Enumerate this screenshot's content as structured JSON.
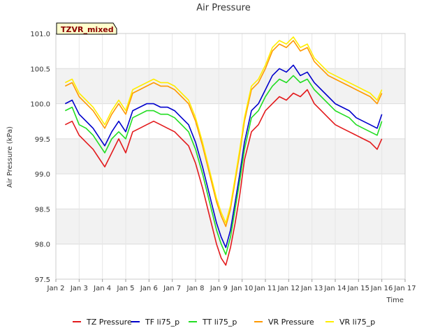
{
  "chart_data": {
    "type": "line",
    "title": "Air Pressure",
    "xlabel": "Time",
    "ylabel": "Air Pressure (kPa)",
    "badge": "TZVR_mixed",
    "ylim": [
      97.5,
      101.0
    ],
    "yticks": [
      "97.5",
      "98.0",
      "98.5",
      "99.0",
      "99.5",
      "100.0",
      "100.5",
      "101.0"
    ],
    "xlim": [
      2,
      17
    ],
    "xticks": [
      "Jan 2",
      "Jan 3",
      "Jan 4",
      "Jan 5",
      "Jan 6",
      "Jan 7",
      "Jan 8",
      "Jan 9",
      "Jan 10",
      "Jan 11",
      "Jan 12",
      "Jan 13",
      "Jan 14",
      "Jan 15",
      "Jan 16",
      "Jan 17"
    ],
    "grid": true,
    "legend_position": "bottom",
    "x": [
      2.4,
      2.7,
      3.0,
      3.3,
      3.6,
      3.9,
      4.1,
      4.4,
      4.7,
      5.0,
      5.3,
      5.6,
      5.9,
      6.2,
      6.5,
      6.8,
      7.1,
      7.4,
      7.7,
      8.0,
      8.3,
      8.6,
      8.9,
      9.1,
      9.3,
      9.5,
      9.7,
      9.9,
      10.1,
      10.4,
      10.7,
      11.0,
      11.3,
      11.6,
      11.9,
      12.2,
      12.5,
      12.8,
      13.1,
      13.4,
      13.7,
      14.0,
      14.3,
      14.6,
      14.9,
      15.2,
      15.5,
      15.8,
      16.0
    ],
    "series": [
      {
        "name": "TZ Pressure",
        "color": "#e31a1c",
        "values": [
          99.7,
          99.75,
          99.55,
          99.45,
          99.35,
          99.2,
          99.1,
          99.3,
          99.5,
          99.3,
          99.6,
          99.65,
          99.7,
          99.75,
          99.7,
          99.65,
          99.6,
          99.5,
          99.4,
          99.15,
          98.8,
          98.4,
          98.0,
          97.8,
          97.7,
          97.95,
          98.3,
          98.7,
          99.2,
          99.6,
          99.7,
          99.9,
          100.0,
          100.1,
          100.05,
          100.15,
          100.1,
          100.2,
          100.0,
          99.9,
          99.8,
          99.7,
          99.65,
          99.6,
          99.55,
          99.5,
          99.45,
          99.35,
          99.5
        ]
      },
      {
        "name": "TF li75_p",
        "color": "#0000cc",
        "values": [
          100.0,
          100.05,
          99.85,
          99.75,
          99.65,
          99.5,
          99.4,
          99.6,
          99.75,
          99.6,
          99.9,
          99.95,
          100.0,
          100.0,
          99.95,
          99.95,
          99.9,
          99.8,
          99.7,
          99.45,
          99.1,
          98.7,
          98.3,
          98.1,
          97.95,
          98.2,
          98.6,
          99.0,
          99.45,
          99.9,
          100.0,
          100.2,
          100.4,
          100.5,
          100.45,
          100.55,
          100.4,
          100.45,
          100.3,
          100.2,
          100.1,
          100.0,
          99.95,
          99.9,
          99.8,
          99.75,
          99.7,
          99.65,
          99.85
        ]
      },
      {
        "name": "TT li75_p",
        "color": "#22dd22",
        "values": [
          99.9,
          99.95,
          99.7,
          99.65,
          99.55,
          99.4,
          99.3,
          99.5,
          99.6,
          99.5,
          99.8,
          99.85,
          99.9,
          99.9,
          99.85,
          99.85,
          99.8,
          99.7,
          99.6,
          99.35,
          99.0,
          98.6,
          98.2,
          98.0,
          97.85,
          98.1,
          98.5,
          98.9,
          99.35,
          99.8,
          99.9,
          100.1,
          100.25,
          100.35,
          100.3,
          100.4,
          100.3,
          100.35,
          100.2,
          100.1,
          100.0,
          99.9,
          99.85,
          99.8,
          99.7,
          99.65,
          99.6,
          99.55,
          99.75
        ]
      },
      {
        "name": "VR Pressure",
        "color": "#ff9900",
        "values": [
          100.25,
          100.3,
          100.1,
          100.0,
          99.9,
          99.75,
          99.65,
          99.85,
          100.0,
          99.85,
          100.15,
          100.2,
          100.25,
          100.3,
          100.25,
          100.25,
          100.2,
          100.1,
          100.0,
          99.75,
          99.4,
          99.0,
          98.6,
          98.4,
          98.25,
          98.5,
          98.9,
          99.3,
          99.75,
          100.2,
          100.3,
          100.5,
          100.75,
          100.85,
          100.8,
          100.9,
          100.75,
          100.8,
          100.6,
          100.5,
          100.4,
          100.35,
          100.3,
          100.25,
          100.2,
          100.15,
          100.1,
          100.0,
          100.15
        ]
      },
      {
        "name": "VR li75_p",
        "color": "#ffee00",
        "values": [
          100.3,
          100.35,
          100.15,
          100.05,
          99.95,
          99.8,
          99.7,
          99.9,
          100.05,
          99.9,
          100.2,
          100.25,
          100.3,
          100.35,
          100.3,
          100.3,
          100.25,
          100.15,
          100.05,
          99.8,
          99.45,
          99.05,
          98.65,
          98.45,
          98.3,
          98.55,
          98.95,
          99.35,
          99.8,
          100.25,
          100.35,
          100.55,
          100.8,
          100.9,
          100.85,
          100.95,
          100.8,
          100.85,
          100.65,
          100.55,
          100.45,
          100.4,
          100.35,
          100.3,
          100.25,
          100.2,
          100.15,
          100.05,
          100.2
        ]
      }
    ]
  }
}
